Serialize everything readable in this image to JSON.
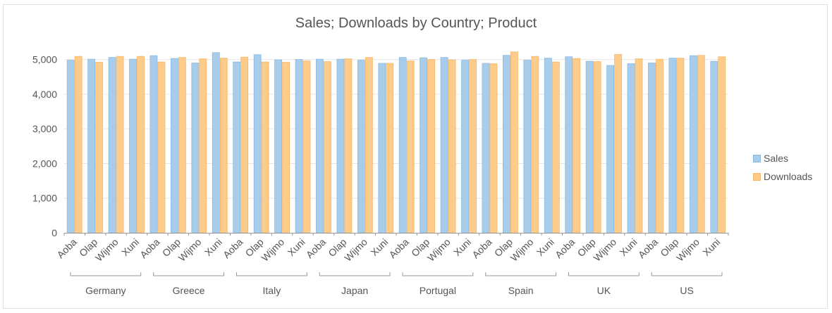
{
  "chart_data": {
    "type": "bar",
    "title": "Sales; Downloads by Country; Product",
    "xlabel": "",
    "ylabel": "",
    "ylim": [
      0,
      5500
    ],
    "yticks": [
      "0",
      "1,000",
      "2,000",
      "3,000",
      "4,000",
      "5,000"
    ],
    "ytick_values": [
      0,
      1000,
      2000,
      3000,
      4000,
      5000
    ],
    "groups": [
      "Germany",
      "Greece",
      "Italy",
      "Japan",
      "Portugal",
      "Spain",
      "UK",
      "US"
    ],
    "products": [
      "Aoba",
      "Olap",
      "Wijmo",
      "Xuni"
    ],
    "grid": "horizontal",
    "legend_position": "right",
    "series": [
      {
        "name": "Sales",
        "color": "#a8cdeb",
        "border": "#8bb9e0",
        "values": [
          4980,
          5010,
          5060,
          5010,
          5110,
          5030,
          4900,
          5200,
          4930,
          5140,
          4990,
          5000,
          5010,
          5010,
          4980,
          4890,
          5060,
          5050,
          5060,
          4980,
          4890,
          5120,
          4980,
          5040,
          5080,
          4950,
          4830,
          4880,
          4900,
          5040,
          5110,
          4950
        ]
      },
      {
        "name": "Downloads",
        "color": "#fdcb8a",
        "border": "#f6b76b",
        "values": [
          5090,
          4920,
          5090,
          5090,
          4930,
          5060,
          5020,
          5040,
          5070,
          4930,
          4920,
          4960,
          4940,
          5020,
          5060,
          4890,
          4960,
          5000,
          4990,
          5000,
          4880,
          5220,
          5090,
          4930,
          5030,
          4940,
          5150,
          5020,
          5010,
          5040,
          5120,
          5080
        ]
      }
    ]
  }
}
